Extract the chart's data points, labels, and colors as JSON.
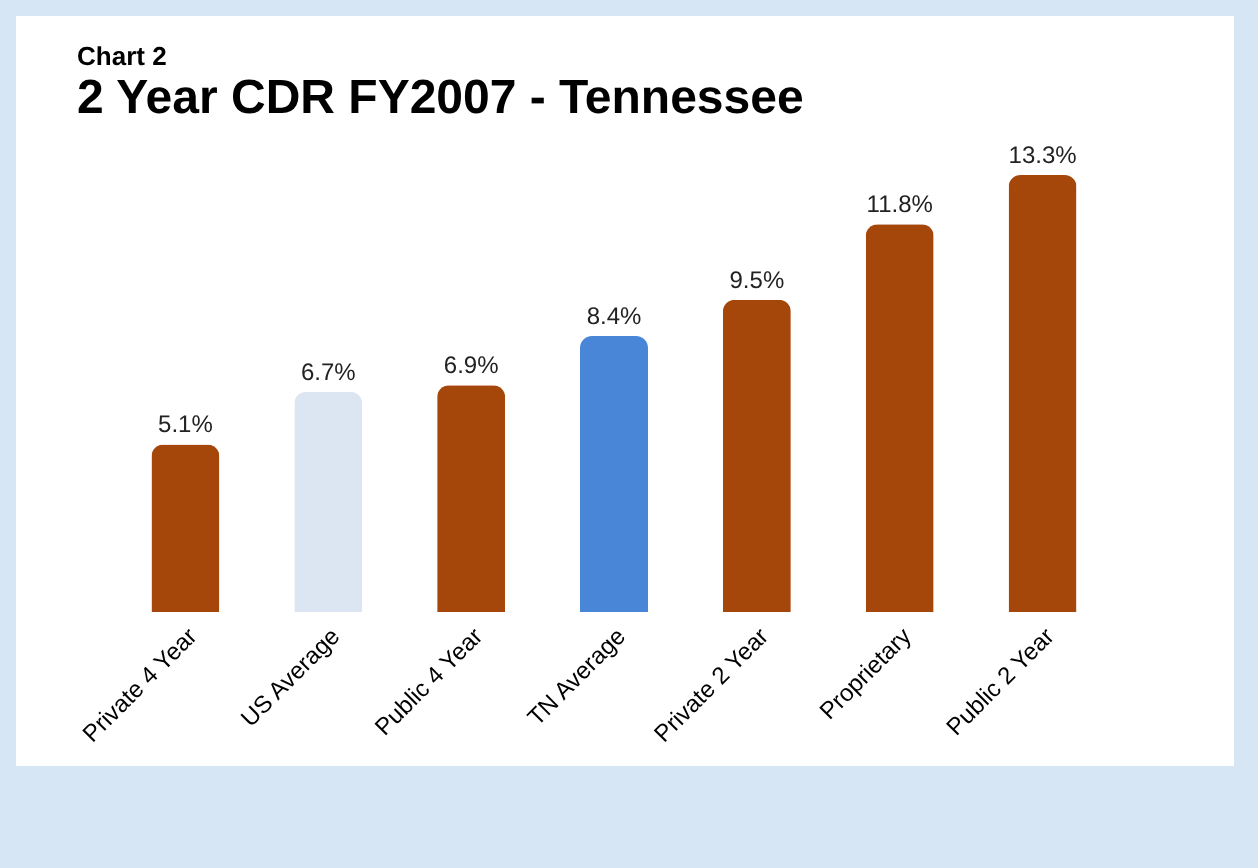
{
  "chart_data": {
    "type": "bar",
    "subtitle": "Chart 2",
    "title": "2 Year CDR FY2007 - Tennessee",
    "categories": [
      "Private 4 Year",
      "US Average",
      "Public 4 Year",
      "TN Average",
      "Private 2 Year",
      "Proprietary",
      "Public 2 Year"
    ],
    "values": [
      5.1,
      6.7,
      6.9,
      8.4,
      9.5,
      11.8,
      13.3
    ],
    "colors": [
      "#a5460b",
      "#dce6f2",
      "#a5460b",
      "#4a86d8",
      "#a5460b",
      "#a5460b",
      "#a5460b"
    ],
    "value_labels": [
      "5.1%",
      "6.7%",
      "6.9%",
      "8.4%",
      "9.5%",
      "11.8%",
      "13.3%"
    ]
  }
}
